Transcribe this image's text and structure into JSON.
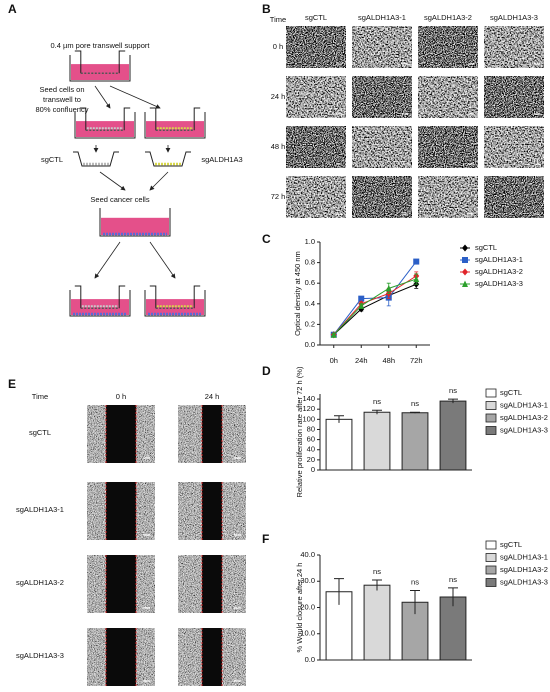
{
  "panel_labels": [
    "A",
    "B",
    "C",
    "D",
    "E",
    "F"
  ],
  "panel_a": {
    "support_label": "0.4 µm pore transwell support",
    "seed_step": [
      "Seed cells on",
      "transwell to",
      "80% confluency"
    ],
    "insert_labels": [
      "sgCTL",
      "sgALDH1A3"
    ],
    "cancer_step": "Seed cancer cells"
  },
  "panel_b": {
    "time_header": "Time",
    "columns": [
      "sgCTL",
      "sgALDH1A3-1",
      "sgALDH1A3-2",
      "sgALDH1A3-3"
    ],
    "rows": [
      "0 h",
      "24 h",
      "48 h",
      "72 h"
    ]
  },
  "chart_data": [
    {
      "type": "line",
      "ylabel": "Optical density at 450 nm",
      "categories": [
        "0h",
        "24h",
        "48h",
        "72h"
      ],
      "ylim": [
        0,
        1
      ],
      "yticks": [
        {
          "value": 0,
          "label": "0.0"
        },
        {
          "value": 0.2,
          "label": "0.2"
        },
        {
          "value": 0.4,
          "label": "0.4"
        },
        {
          "value": 0.6,
          "label": "0.6"
        },
        {
          "value": 0.8,
          "label": "0.8"
        },
        {
          "value": 1,
          "label": "1.0"
        }
      ],
      "series": [
        {
          "name": "sgCTL",
          "color": "#000000",
          "marker": "diamond",
          "values": [
            0.1,
            0.35,
            0.48,
            0.59
          ],
          "errors": [
            0.01,
            0.02,
            0.04,
            0.04
          ]
        },
        {
          "name": "sgALDH1A3-1",
          "color": "#2b5fc7",
          "marker": "square",
          "values": [
            0.1,
            0.45,
            0.46,
            0.81
          ],
          "errors": [
            0.01,
            0.01,
            0.08,
            0.02
          ]
        },
        {
          "name": "sgALDH1A3-2",
          "color": "#e0242a",
          "marker": "diamond",
          "values": [
            0.1,
            0.4,
            0.5,
            0.67
          ],
          "errors": [
            0.01,
            0.02,
            0.05,
            0.04
          ]
        },
        {
          "name": "sgALDH1A3-3",
          "color": "#2ca02c",
          "marker": "triangle",
          "values": [
            0.1,
            0.38,
            0.55,
            0.64
          ],
          "errors": [
            0.01,
            0.02,
            0.05,
            0.05
          ]
        }
      ]
    },
    {
      "type": "bar",
      "ylabel": "Relative proliferation rate after 72 h (%)",
      "categories": [
        "sgCTL",
        "sgALDH1A3-1",
        "sgALDH1A3-2",
        "sgALDH1A3-3"
      ],
      "values": [
        100,
        114,
        113,
        136
      ],
      "errors": [
        7,
        4,
        1,
        4
      ],
      "colors": [
        "#ffffff",
        "#d9d9d9",
        "#a6a6a6",
        "#7a7a7a"
      ],
      "ylim": [
        0,
        150
      ],
      "yticks": [
        0,
        20,
        40,
        60,
        80,
        100,
        120,
        140
      ],
      "annotations": [
        {
          "category": 1,
          "text": "ns"
        },
        {
          "category": 2,
          "text": "ns"
        },
        {
          "category": 3,
          "text": "ns"
        }
      ]
    },
    {
      "type": "bar",
      "ylabel": "% Would closure after 24 h",
      "categories": [
        "sgCTL",
        "sgALDH1A3-1",
        "sgALDH1A3-2",
        "sgALDH1A3-3"
      ],
      "values": [
        26,
        28.5,
        22,
        24
      ],
      "errors": [
        5,
        2,
        4.5,
        3.5
      ],
      "colors": [
        "#ffffff",
        "#d9d9d9",
        "#a6a6a6",
        "#7a7a7a"
      ],
      "ylim": [
        0,
        40
      ],
      "yticks": [
        {
          "value": 0,
          "label": "0.0"
        },
        {
          "value": 10,
          "label": "10.0"
        },
        {
          "value": 20,
          "label": "20.0"
        },
        {
          "value": 30,
          "label": "30.0"
        },
        {
          "value": 40,
          "label": "40.0"
        }
      ],
      "annotations": [
        {
          "category": 1,
          "text": "ns"
        },
        {
          "category": 2,
          "text": "ns"
        },
        {
          "category": 3,
          "text": "ns"
        }
      ]
    }
  ],
  "panel_e": {
    "time_header": "Time",
    "columns": [
      "0 h",
      "24 h"
    ],
    "rows": [
      "sgCTL",
      "sgALDH1A3-1",
      "sgALDH1A3-2",
      "sgALDH1A3-3"
    ]
  }
}
